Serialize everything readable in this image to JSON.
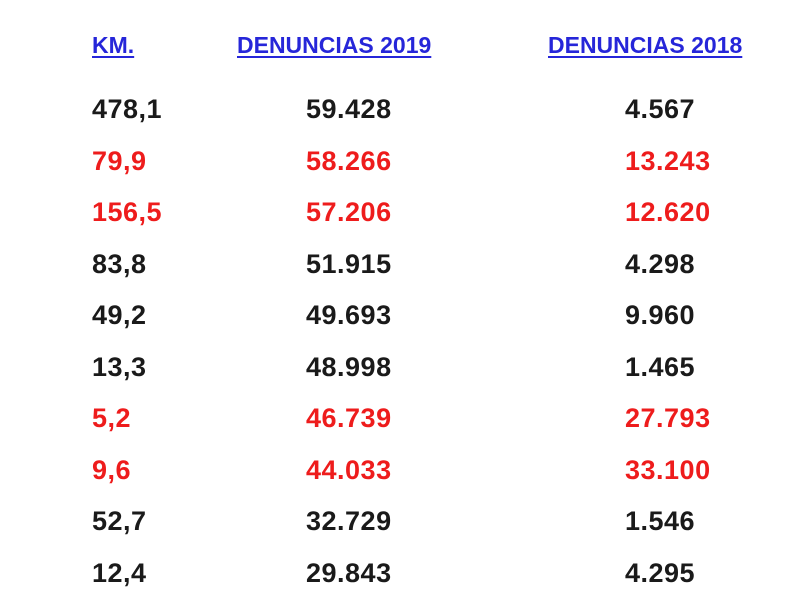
{
  "colors": {
    "header": "#2626d9",
    "normal": "#1a1a1a",
    "highlight": "#ee1c1c"
  },
  "headers": {
    "km": "KM.",
    "denuncias_2019": "DENUNCIAS 2019",
    "denuncias_2018": "DENUNCIAS 2018"
  },
  "rows": [
    {
      "km": "478,1",
      "d2019": "59.428",
      "d2018": "4.567",
      "highlighted": false
    },
    {
      "km": "79,9",
      "d2019": "58.266",
      "d2018": "13.243",
      "highlighted": true
    },
    {
      "km": "156,5",
      "d2019": "57.206",
      "d2018": "12.620",
      "highlighted": true
    },
    {
      "km": "83,8",
      "d2019": "51.915",
      "d2018": "4.298",
      "highlighted": false
    },
    {
      "km": "49,2",
      "d2019": "49.693",
      "d2018": "9.960",
      "highlighted": false
    },
    {
      "km": "13,3",
      "d2019": "48.998",
      "d2018": "1.465",
      "highlighted": false
    },
    {
      "km": "5,2",
      "d2019": "46.739",
      "d2018": "27.793",
      "highlighted": true
    },
    {
      "km": "9,6",
      "d2019": "44.033",
      "d2018": "33.100",
      "highlighted": true
    },
    {
      "km": "52,7",
      "d2019": "32.729",
      "d2018": "1.546",
      "highlighted": false
    },
    {
      "km": "12,4",
      "d2019": "29.843",
      "d2018": "4.295",
      "highlighted": false
    }
  ]
}
